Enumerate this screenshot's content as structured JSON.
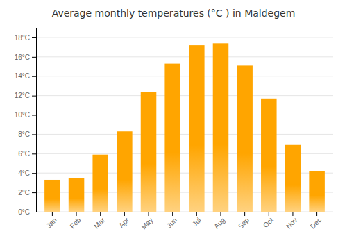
{
  "chart_data": {
    "type": "bar",
    "title": "Average monthly temperatures (°C ) in Maldegem",
    "categories": [
      "Jan",
      "Feb",
      "Mar",
      "Apr",
      "May",
      "Jun",
      "Jul",
      "Aug",
      "Sep",
      "Oct",
      "Nov",
      "Dec"
    ],
    "values": [
      3.3,
      3.5,
      5.9,
      8.3,
      12.4,
      15.3,
      17.2,
      17.4,
      15.1,
      11.7,
      6.9,
      4.2
    ],
    "color": "#FFA500",
    "ylim": [
      0,
      19
    ],
    "yticks": [
      {
        "value": 0,
        "label": "0°C"
      },
      {
        "value": 2,
        "label": "2°C"
      },
      {
        "value": 4,
        "label": "4°C"
      },
      {
        "value": 6,
        "label": "6°C"
      },
      {
        "value": 8,
        "label": "8°C"
      },
      {
        "value": 10,
        "label": "10°C"
      },
      {
        "value": 12,
        "label": "12°C"
      },
      {
        "value": 14,
        "label": "14°C"
      },
      {
        "value": 16,
        "label": "16°C"
      },
      {
        "value": 18,
        "label": "18°C"
      }
    ],
    "grid": true
  }
}
